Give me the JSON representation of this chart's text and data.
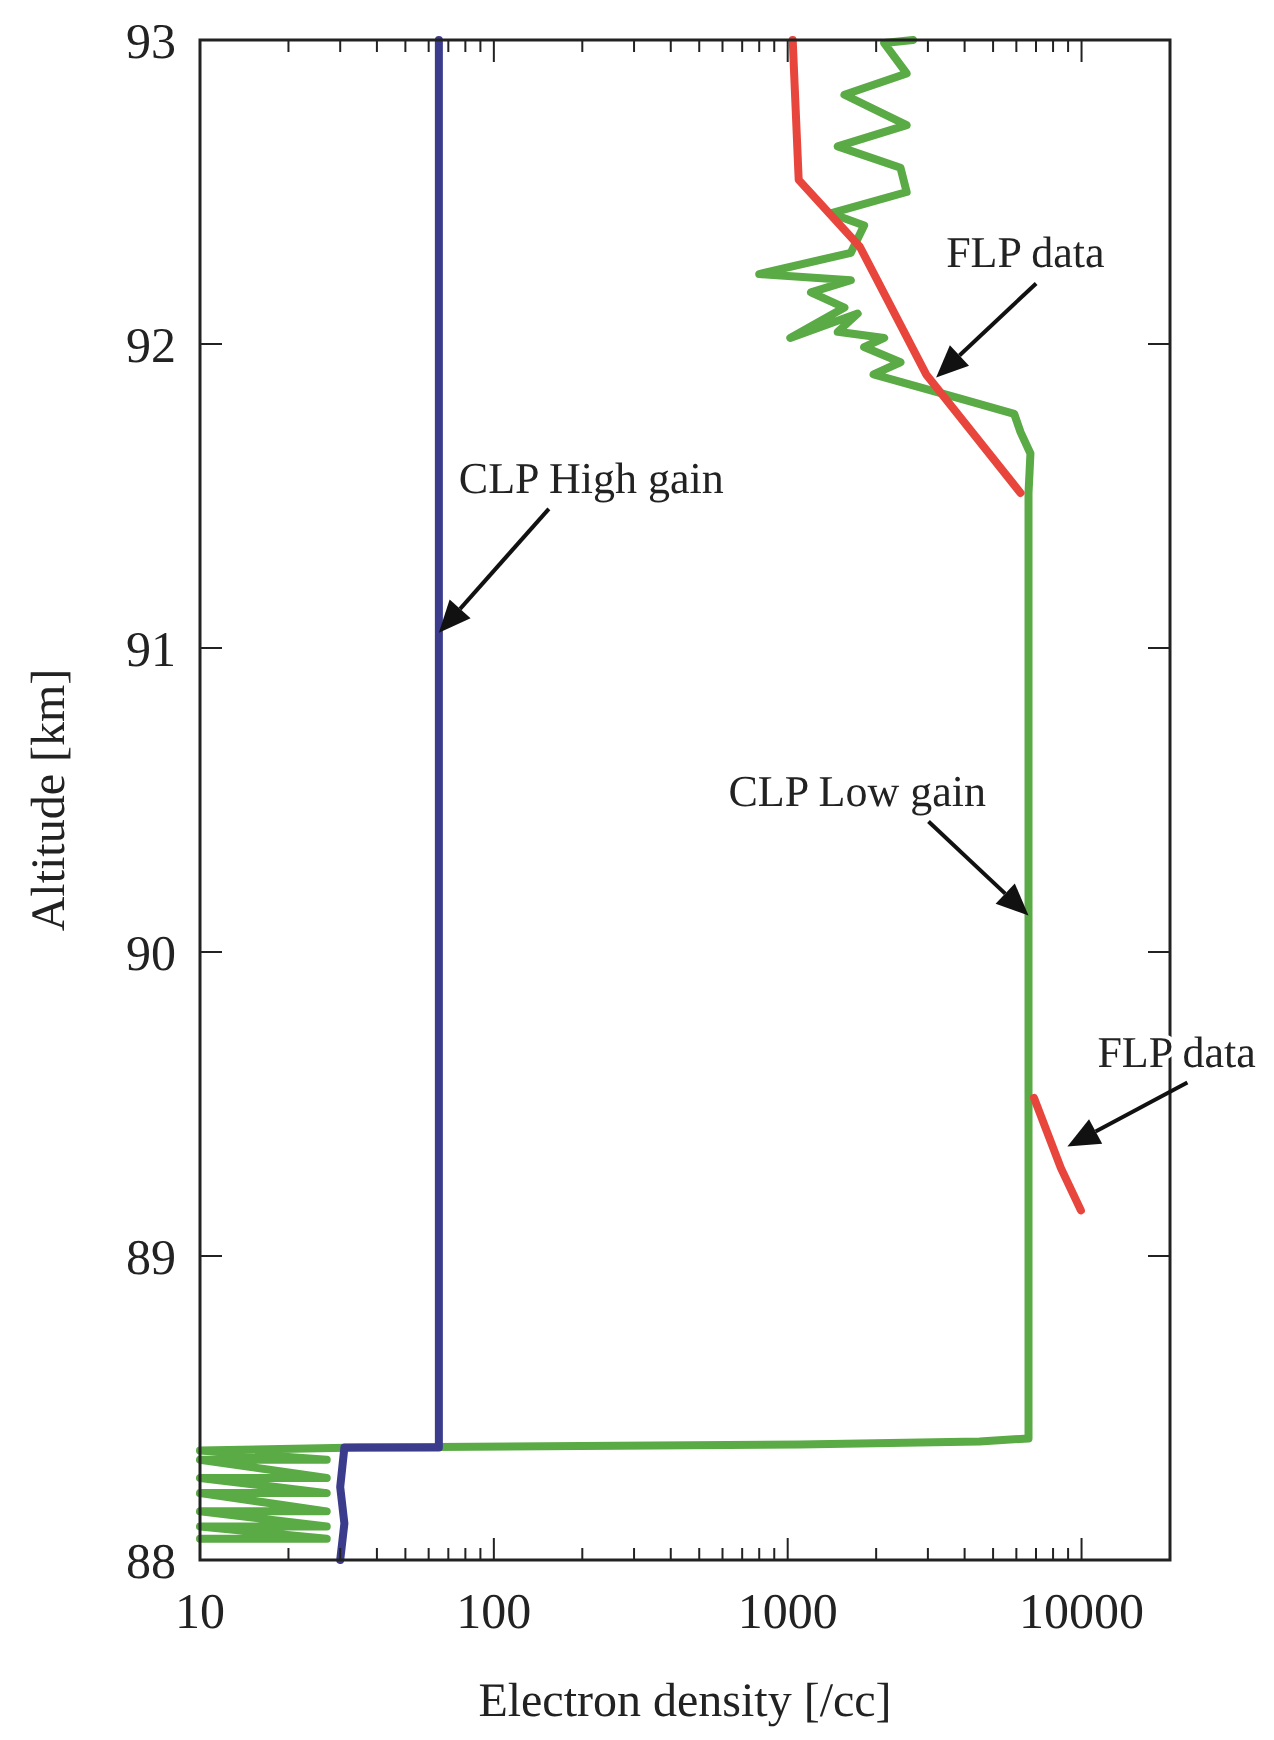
{
  "chart_data": {
    "type": "line",
    "xlabel": "Electron density [/cc]",
    "ylabel": "Altitude [km]",
    "log": "x",
    "grid": false,
    "xlim": [
      10,
      20000
    ],
    "xticks": [
      10,
      {
        "value": 20,
        "label": null
      },
      {
        "value": 30,
        "label": null
      },
      {
        "value": 40,
        "label": null
      },
      {
        "value": 50,
        "label": null
      },
      {
        "value": 60,
        "label": null
      },
      {
        "value": 70,
        "label": null
      },
      {
        "value": 80,
        "label": null
      },
      {
        "value": 90,
        "label": null
      },
      100,
      {
        "value": 200,
        "label": null
      },
      {
        "value": 300,
        "label": null
      },
      {
        "value": 400,
        "label": null
      },
      {
        "value": 500,
        "label": null
      },
      {
        "value": 600,
        "label": null
      },
      {
        "value": 700,
        "label": null
      },
      {
        "value": 800,
        "label": null
      },
      {
        "value": 900,
        "label": null
      },
      1000,
      {
        "value": 2000,
        "label": null
      },
      {
        "value": 3000,
        "label": null
      },
      {
        "value": 4000,
        "label": null
      },
      {
        "value": 5000,
        "label": null
      },
      {
        "value": 6000,
        "label": null
      },
      {
        "value": 7000,
        "label": null
      },
      {
        "value": 8000,
        "label": null
      },
      {
        "value": 9000,
        "label": null
      },
      10000
    ],
    "ylim": [
      88,
      93
    ],
    "yticks": [
      88,
      89,
      90,
      91,
      92,
      93
    ],
    "series": [
      {
        "color": "#5aaa46",
        "x": [
          10,
          27,
          10,
          27,
          10,
          27,
          10,
          27,
          10,
          27,
          10,
          27,
          10,
          35,
          1100,
          4500,
          6600,
          6600,
          6700,
          6200,
          5900,
          3870,
          1960,
          2420,
          1820,
          2130,
          1480,
          1730,
          1020,
          1560,
          1200,
          1640,
          800,
          1640,
          1820,
          1400,
          2540,
          2420,
          1480,
          2540,
          1560,
          2540,
          2130,
          2670
        ],
        "values": [
          88.07,
          88.07,
          88.11,
          88.11,
          88.16,
          88.16,
          88.22,
          88.22,
          88.27,
          88.27,
          88.33,
          88.33,
          88.36,
          88.37,
          88.38,
          88.39,
          88.4,
          91.51,
          91.64,
          91.71,
          91.77,
          91.82,
          91.9,
          91.94,
          91.99,
          92.02,
          92.04,
          92.1,
          92.02,
          92.12,
          92.17,
          92.21,
          92.23,
          92.3,
          92.39,
          92.43,
          92.5,
          92.58,
          92.65,
          92.72,
          92.82,
          92.89,
          92.99,
          93
        ]
      },
      {
        "color": "#3c3c8c",
        "x": [
          30,
          31,
          30,
          31,
          65,
          65
        ],
        "values": [
          88,
          88.12,
          88.24,
          88.37,
          88.37,
          93
        ]
      },
      {
        "color": "#e8463c",
        "x": [
          6200,
          2960,
          1760,
          1090,
          1040
        ],
        "values": [
          91.51,
          91.9,
          92.32,
          92.54,
          93
        ]
      },
      {
        "color": "#e8463c",
        "x": [
          6890,
          8500,
          9950
        ],
        "values": [
          89.52,
          89.29,
          89.15
        ]
      }
    ],
    "annotations": [
      {
        "text": "CLP High gain",
        "x": 65,
        "y": 91.05
      },
      {
        "text": "FLP data",
        "x": 3200,
        "y": 91.89
      },
      {
        "text": "CLP Low gain",
        "x": 6600,
        "y": 90.12
      },
      {
        "text": "FLP data",
        "x": 8950,
        "y": 89.36
      }
    ]
  }
}
